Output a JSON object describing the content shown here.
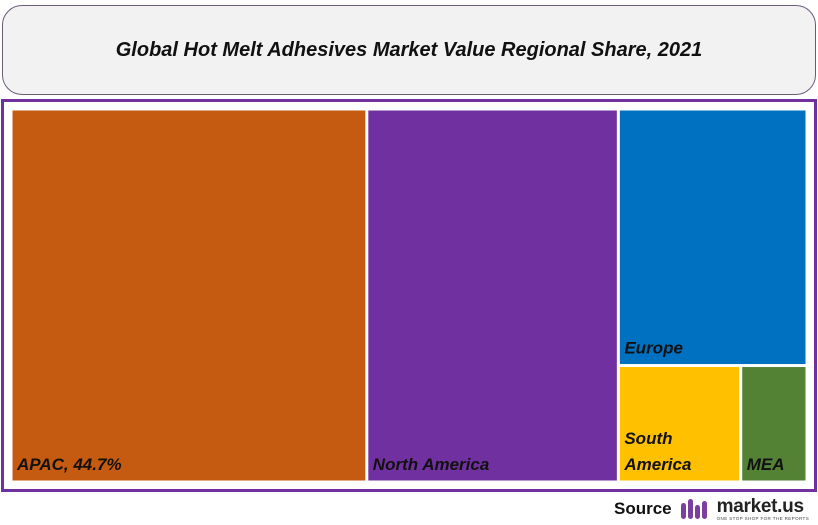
{
  "title": "Global Hot Melt Adhesives Market Value Regional Share, 2021",
  "source_label": "Source",
  "logo": {
    "name": "market.us",
    "tagline": "ONE STOP SHOP FOR THE REPORTS"
  },
  "chart_data": {
    "type": "treemap",
    "title": "Global Hot Melt Adhesives Market Value Regional Share, 2021",
    "unit": "%",
    "items": [
      {
        "label": "APAC, 44.7%",
        "name": "APAC",
        "value": 44.7,
        "color": "#c55a11"
      },
      {
        "label": "North America",
        "name": "North America",
        "value": 31.6,
        "color": "#7030a0"
      },
      {
        "label": "Europe",
        "name": "Europe",
        "value": 16.3,
        "color": "#0070c0"
      },
      {
        "label": "South\nAmerica",
        "name": "South America",
        "value": 4.8,
        "color": "#ffc000"
      },
      {
        "label": "MEA",
        "name": "MEA",
        "value": 2.6,
        "color": "#548235"
      }
    ]
  }
}
